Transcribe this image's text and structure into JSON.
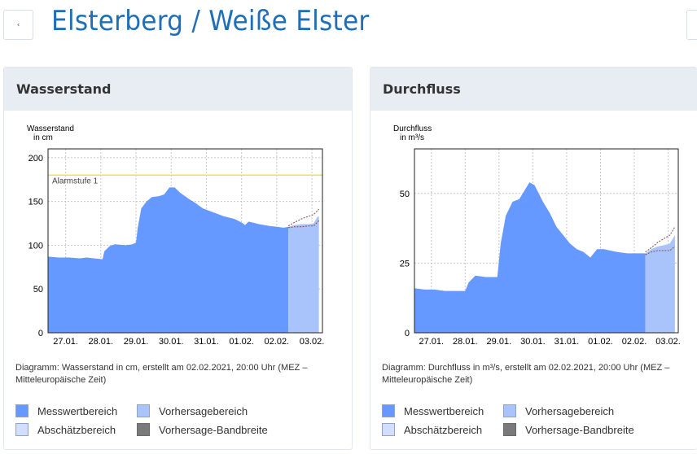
{
  "header": {
    "title": "Elsterberg / Weiße Elster",
    "back_icon": "chevron-left-icon"
  },
  "colors": {
    "title": "#1f6fb8",
    "measured": "#6699ff",
    "forecast": "#a9c4fa",
    "estimate": "#d3deff",
    "bandwidth": "#7a7a7a",
    "alarm": "#f2e34a"
  },
  "legend": {
    "measured": "Messwertbereich",
    "forecast": "Vorhersagebereich",
    "estimate": "Abschätzbereich",
    "bandwidth": "Vorhersage-Bandbreite"
  },
  "cards": [
    {
      "title": "Wasserstand",
      "caption": "Diagramm: Wasserstand in cm, erstellt am 02.02.2021, 20:00 Uhr (MEZ – Mitteleuropäische Zeit)"
    },
    {
      "title": "Durchfluss",
      "caption": "Diagramm: Durchfluss in m³/s, erstellt am 02.02.2021, 20:00 Uhr (MEZ – Mitteleuropäische Zeit)"
    }
  ],
  "chart_data": [
    {
      "type": "area",
      "title": "Wasserstand",
      "ylabel_line1": "Wasserstand",
      "ylabel_line2": "in cm",
      "ylim": [
        0,
        210
      ],
      "yticks": [
        0,
        50,
        100,
        150,
        200
      ],
      "xlim": [
        0,
        7.8
      ],
      "xtick_positions": [
        0.5,
        1.5,
        2.5,
        3.5,
        4.5,
        5.5,
        6.5,
        7.5
      ],
      "xtick_labels": [
        "27.01.",
        "28.01.",
        "29.01.",
        "30.01.",
        "31.01.",
        "01.02.",
        "02.02.",
        "03.02."
      ],
      "forecast_start": 6.83,
      "annotation": {
        "text": "Alarmstufe 1",
        "value": 180
      },
      "measured": [
        [
          0,
          87
        ],
        [
          0.3,
          86
        ],
        [
          0.6,
          86
        ],
        [
          0.9,
          85
        ],
        [
          1.1,
          86
        ],
        [
          1.3,
          85
        ],
        [
          1.55,
          84
        ],
        [
          1.6,
          93
        ],
        [
          1.75,
          99
        ],
        [
          1.9,
          101
        ],
        [
          2.2,
          100
        ],
        [
          2.4,
          101
        ],
        [
          2.5,
          103
        ],
        [
          2.55,
          120
        ],
        [
          2.65,
          142
        ],
        [
          2.8,
          150
        ],
        [
          2.95,
          155
        ],
        [
          3.15,
          156
        ],
        [
          3.3,
          158
        ],
        [
          3.45,
          166
        ],
        [
          3.6,
          166
        ],
        [
          3.75,
          160
        ],
        [
          4.0,
          153
        ],
        [
          4.2,
          148
        ],
        [
          4.4,
          142
        ],
        [
          4.6,
          139
        ],
        [
          4.8,
          136
        ],
        [
          5.0,
          133
        ],
        [
          5.3,
          130
        ],
        [
          5.5,
          126
        ],
        [
          5.6,
          123
        ],
        [
          5.7,
          127
        ],
        [
          5.8,
          126
        ],
        [
          6.0,
          124
        ],
        [
          6.3,
          122
        ],
        [
          6.5,
          121
        ],
        [
          6.7,
          120
        ],
        [
          6.83,
          121
        ]
      ],
      "forecast": [
        [
          6.83,
          121
        ],
        [
          7.0,
          123
        ],
        [
          7.2,
          124
        ],
        [
          7.4,
          124
        ],
        [
          7.55,
          125
        ],
        [
          7.65,
          132
        ],
        [
          7.7,
          133
        ]
      ],
      "band_upper": [
        [
          6.83,
          122
        ],
        [
          7.0,
          126
        ],
        [
          7.2,
          130
        ],
        [
          7.4,
          133
        ],
        [
          7.55,
          135
        ],
        [
          7.7,
          141
        ]
      ],
      "band_lower": [
        [
          6.83,
          120
        ],
        [
          7.0,
          121
        ],
        [
          7.2,
          121
        ],
        [
          7.4,
          122
        ],
        [
          7.55,
          122
        ],
        [
          7.7,
          128
        ]
      ]
    },
    {
      "type": "area",
      "title": "Durchfluss",
      "ylabel_line1": "Durchfluss",
      "ylabel_line2": "in m³/s",
      "ylim": [
        0,
        66
      ],
      "yticks": [
        0,
        25,
        50
      ],
      "xlim": [
        0,
        7.8
      ],
      "xtick_positions": [
        0.5,
        1.5,
        2.5,
        3.5,
        4.5,
        5.5,
        6.5,
        7.5
      ],
      "xtick_labels": [
        "27.01.",
        "28.01.",
        "29.01.",
        "30.01.",
        "31.01.",
        "01.02.",
        "02.02.",
        "03.02."
      ],
      "forecast_start": 6.83,
      "measured": [
        [
          0,
          16
        ],
        [
          0.3,
          15.5
        ],
        [
          0.6,
          15.5
        ],
        [
          0.9,
          15
        ],
        [
          1.2,
          15
        ],
        [
          1.5,
          15
        ],
        [
          1.6,
          18
        ],
        [
          1.8,
          20.5
        ],
        [
          2.1,
          20
        ],
        [
          2.45,
          20
        ],
        [
          2.55,
          32
        ],
        [
          2.7,
          42
        ],
        [
          2.9,
          47
        ],
        [
          3.1,
          48
        ],
        [
          3.3,
          52
        ],
        [
          3.4,
          54
        ],
        [
          3.55,
          53
        ],
        [
          3.8,
          47
        ],
        [
          4.0,
          43
        ],
        [
          4.2,
          38
        ],
        [
          4.4,
          35
        ],
        [
          4.6,
          32
        ],
        [
          4.8,
          30
        ],
        [
          5.0,
          29
        ],
        [
          5.2,
          27
        ],
        [
          5.3,
          28.5
        ],
        [
          5.4,
          30
        ],
        [
          5.6,
          30
        ],
        [
          5.8,
          29.5
        ],
        [
          6.0,
          29
        ],
        [
          6.3,
          28.5
        ],
        [
          6.5,
          28.5
        ],
        [
          6.83,
          28.5
        ]
      ],
      "forecast": [
        [
          6.83,
          28.5
        ],
        [
          7.0,
          30
        ],
        [
          7.2,
          31
        ],
        [
          7.4,
          31.5
        ],
        [
          7.55,
          32
        ],
        [
          7.65,
          34
        ],
        [
          7.7,
          35
        ]
      ],
      "band_upper": [
        [
          6.83,
          29
        ],
        [
          7.0,
          30.5
        ],
        [
          7.2,
          32.5
        ],
        [
          7.4,
          34
        ],
        [
          7.55,
          35
        ],
        [
          7.7,
          38
        ]
      ],
      "band_lower": [
        [
          6.83,
          28
        ],
        [
          7.0,
          29
        ],
        [
          7.2,
          29.5
        ],
        [
          7.4,
          29.5
        ],
        [
          7.55,
          29.5
        ],
        [
          7.7,
          31
        ]
      ]
    }
  ]
}
